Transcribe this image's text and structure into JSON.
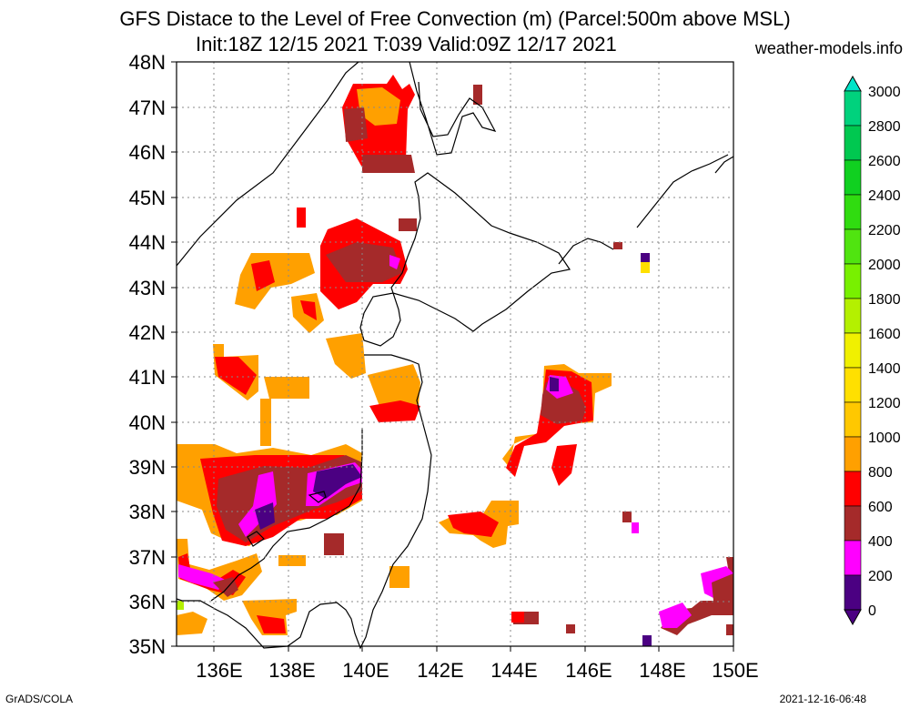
{
  "title": {
    "line1": "GFS Distace to the Level of Free Convection (m) (Parcel:500m above MSL)",
    "line2": "Init:18Z 12/15 2021 T:039 Valid:09Z 12/17 2021"
  },
  "site": "weather-models.info",
  "footer": {
    "left": "GrADS/COLA",
    "right": "2021-12-16-06:48"
  },
  "map": {
    "lat_labels": [
      "48N",
      "47N",
      "46N",
      "45N",
      "44N",
      "43N",
      "42N",
      "41N",
      "40N",
      "39N",
      "38N",
      "37N",
      "36N",
      "35N"
    ],
    "lon_labels": [
      "136E",
      "138E",
      "140E",
      "142E",
      "144E",
      "146E",
      "148E",
      "150E"
    ],
    "lat_range": [
      35,
      48
    ],
    "lon_range": [
      135,
      150
    ],
    "grid": true
  },
  "colorbar": {
    "labels": [
      "3000",
      "2800",
      "2600",
      "2400",
      "2200",
      "2000",
      "1800",
      "1600",
      "1400",
      "1200",
      "1000",
      "800",
      "600",
      "400",
      "200",
      "0"
    ],
    "colors": [
      "#00e4c8",
      "#00d27d",
      "#00c850",
      "#10d020",
      "#30dc10",
      "#50e410",
      "#78f000",
      "#b4f000",
      "#f0f000",
      "#ffe000",
      "#ffc800",
      "#ffa000",
      "#ff0000",
      "#a52a2a",
      "#ff00ff",
      "#4b0082"
    ]
  }
}
